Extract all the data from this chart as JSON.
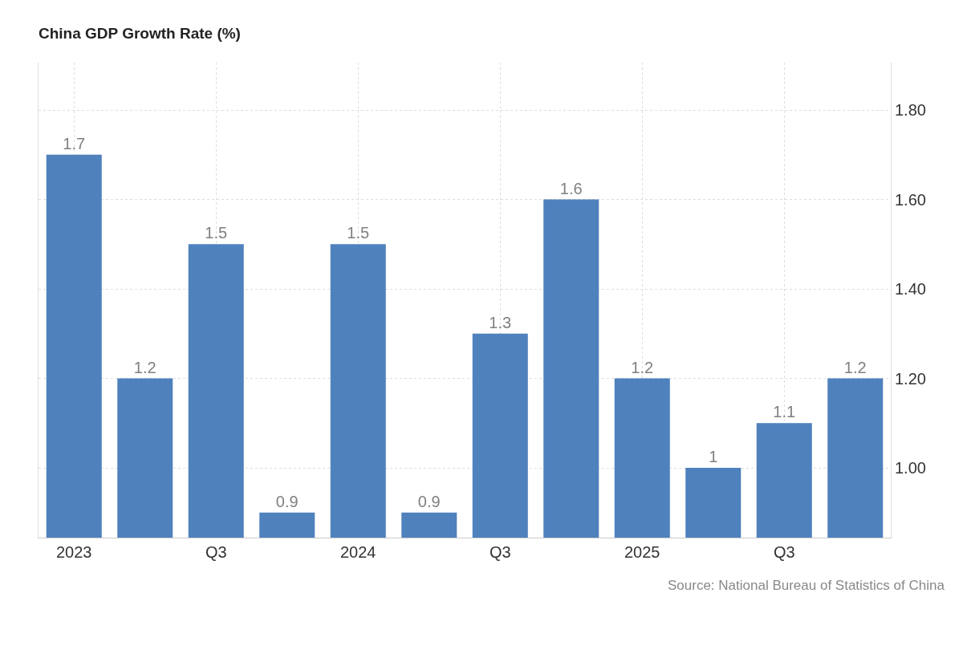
{
  "chart_data": {
    "type": "bar",
    "title": "China GDP Growth Rate (%)",
    "categories": [
      "2023",
      null,
      "Q3",
      null,
      "2024",
      null,
      "Q3",
      null,
      "2025",
      null,
      "Q3",
      null
    ],
    "values": [
      1.7,
      1.2,
      1.5,
      0.9,
      1.5,
      0.9,
      1.3,
      1.6,
      1.2,
      1.0,
      1.1,
      1.2
    ],
    "color": "#4f81bd",
    "data_labels": true,
    "ylim": [
      0.844,
      1.906
    ],
    "yticks": [
      {
        "value": 1.0,
        "label": "1.00"
      },
      {
        "value": 1.2,
        "label": "1.20"
      },
      {
        "value": 1.4,
        "label": "1.40"
      },
      {
        "value": 1.6,
        "label": "1.60"
      },
      {
        "value": 1.8,
        "label": "1.80"
      }
    ],
    "grid": true,
    "annotations": [
      "Source: National Bureau of Statistics of China"
    ]
  }
}
